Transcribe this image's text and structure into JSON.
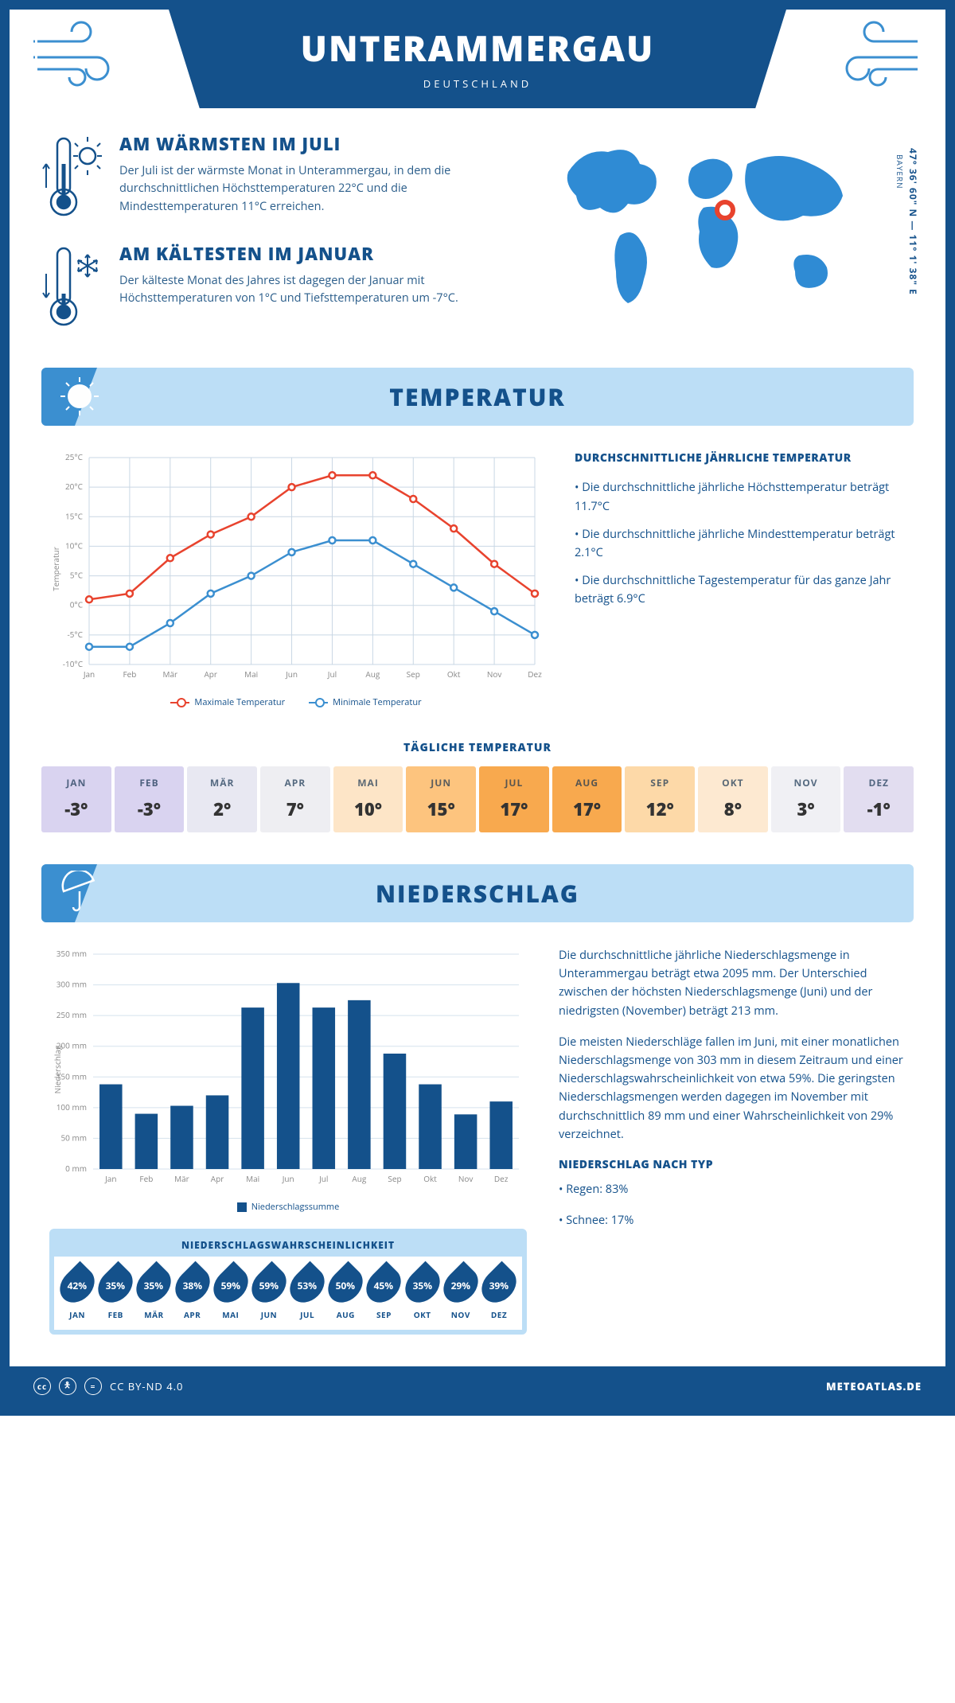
{
  "header": {
    "city": "UNTERAMMERGAU",
    "country": "DEUTSCHLAND"
  },
  "coords": "47° 36' 60\" N — 11° 1' 38\" E",
  "region": "BAYERN",
  "facts": {
    "warm": {
      "title": "AM WÄRMSTEN IM JULI",
      "text": "Der Juli ist der wärmste Monat in Unterammergau, in dem die durchschnittlichen Höchsttemperaturen 22°C und die Mindesttemperaturen 11°C erreichen."
    },
    "cold": {
      "title": "AM KÄLTESTEN IM JANUAR",
      "text": "Der kälteste Monat des Jahres ist dagegen der Januar mit Höchsttemperaturen von 1°C und Tiefsttemperaturen um -7°C."
    }
  },
  "sections": {
    "temp_title": "TEMPERATUR",
    "precip_title": "NIEDERSCHLAG"
  },
  "temp_chart": {
    "y_label": "Temperatur",
    "months": [
      "Jan",
      "Feb",
      "Mär",
      "Apr",
      "Mai",
      "Jun",
      "Jul",
      "Aug",
      "Sep",
      "Okt",
      "Nov",
      "Dez"
    ],
    "max_series": [
      1,
      2,
      8,
      12,
      15,
      20,
      22,
      22,
      18,
      13,
      7,
      2
    ],
    "min_series": [
      -7,
      -7,
      -3,
      2,
      5,
      9,
      11,
      11,
      7,
      3,
      -1,
      -5
    ],
    "y_min": -10,
    "y_max": 25,
    "y_step": 5,
    "max_color": "#e8432e",
    "min_color": "#3b8fd0",
    "grid_color": "#c9d7e4",
    "legend_max": "Maximale Temperatur",
    "legend_min": "Minimale Temperatur"
  },
  "temp_text": {
    "heading": "DURCHSCHNITTLICHE JÄHRLICHE TEMPERATUR",
    "b1": "• Die durchschnittliche jährliche Höchsttemperatur beträgt 11.7°C",
    "b2": "• Die durchschnittliche jährliche Mindesttemperatur beträgt 2.1°C",
    "b3": "• Die durchschnittliche Tagestemperatur für das ganze Jahr beträgt 6.9°C"
  },
  "daily": {
    "title": "TÄGLICHE TEMPERATUR",
    "months": [
      "JAN",
      "FEB",
      "MÄR",
      "APR",
      "MAI",
      "JUN",
      "JUL",
      "AUG",
      "SEP",
      "OKT",
      "NOV",
      "DEZ"
    ],
    "values": [
      "-3°",
      "-3°",
      "2°",
      "7°",
      "10°",
      "15°",
      "17°",
      "17°",
      "12°",
      "8°",
      "3°",
      "-1°"
    ],
    "colors": [
      "#d9d3f0",
      "#d9d3f0",
      "#e8e8f2",
      "#eeeef2",
      "#fde5c7",
      "#fdc47e",
      "#f8a94e",
      "#f8a94e",
      "#fdd9a8",
      "#fde9d1",
      "#f0f0f4",
      "#e2ddf0"
    ]
  },
  "precip_chart": {
    "y_label": "Niederschlag",
    "months": [
      "Jan",
      "Feb",
      "Mär",
      "Apr",
      "Mai",
      "Jun",
      "Jul",
      "Aug",
      "Sep",
      "Okt",
      "Nov",
      "Dez"
    ],
    "values": [
      138,
      90,
      103,
      120,
      263,
      303,
      263,
      275,
      188,
      138,
      89,
      110
    ],
    "y_max": 350,
    "y_step": 50,
    "bar_color": "#14518b",
    "grid_color": "#d5e2ed",
    "legend": "Niederschlagssumme"
  },
  "precip_text": {
    "p1": "Die durchschnittliche jährliche Niederschlagsmenge in Unterammergau beträgt etwa 2095 mm. Der Unterschied zwischen der höchsten Niederschlagsmenge (Juni) und der niedrigsten (November) beträgt 213 mm.",
    "p2": "Die meisten Niederschläge fallen im Juni, mit einer monatlichen Niederschlagsmenge von 303 mm in diesem Zeitraum und einer Niederschlagswahrscheinlichkeit von etwa 59%. Die geringsten Niederschlagsmengen werden dagegen im November mit durchschnittlich 89 mm und einer Wahrscheinlichkeit von 29% verzeichnet.",
    "heading": "NIEDERSCHLAG NACH TYP",
    "t1": "• Regen: 83%",
    "t2": "• Schnee: 17%"
  },
  "prob": {
    "title": "NIEDERSCHLAGSWAHRSCHEINLICHKEIT",
    "months": [
      "JAN",
      "FEB",
      "MÄR",
      "APR",
      "MAI",
      "JUN",
      "JUL",
      "AUG",
      "SEP",
      "OKT",
      "NOV",
      "DEZ"
    ],
    "values": [
      "42%",
      "35%",
      "35%",
      "38%",
      "59%",
      "59%",
      "53%",
      "50%",
      "45%",
      "35%",
      "29%",
      "39%"
    ]
  },
  "footer": {
    "license": "CC BY-ND 4.0",
    "site": "METEOATLAS.DE"
  }
}
